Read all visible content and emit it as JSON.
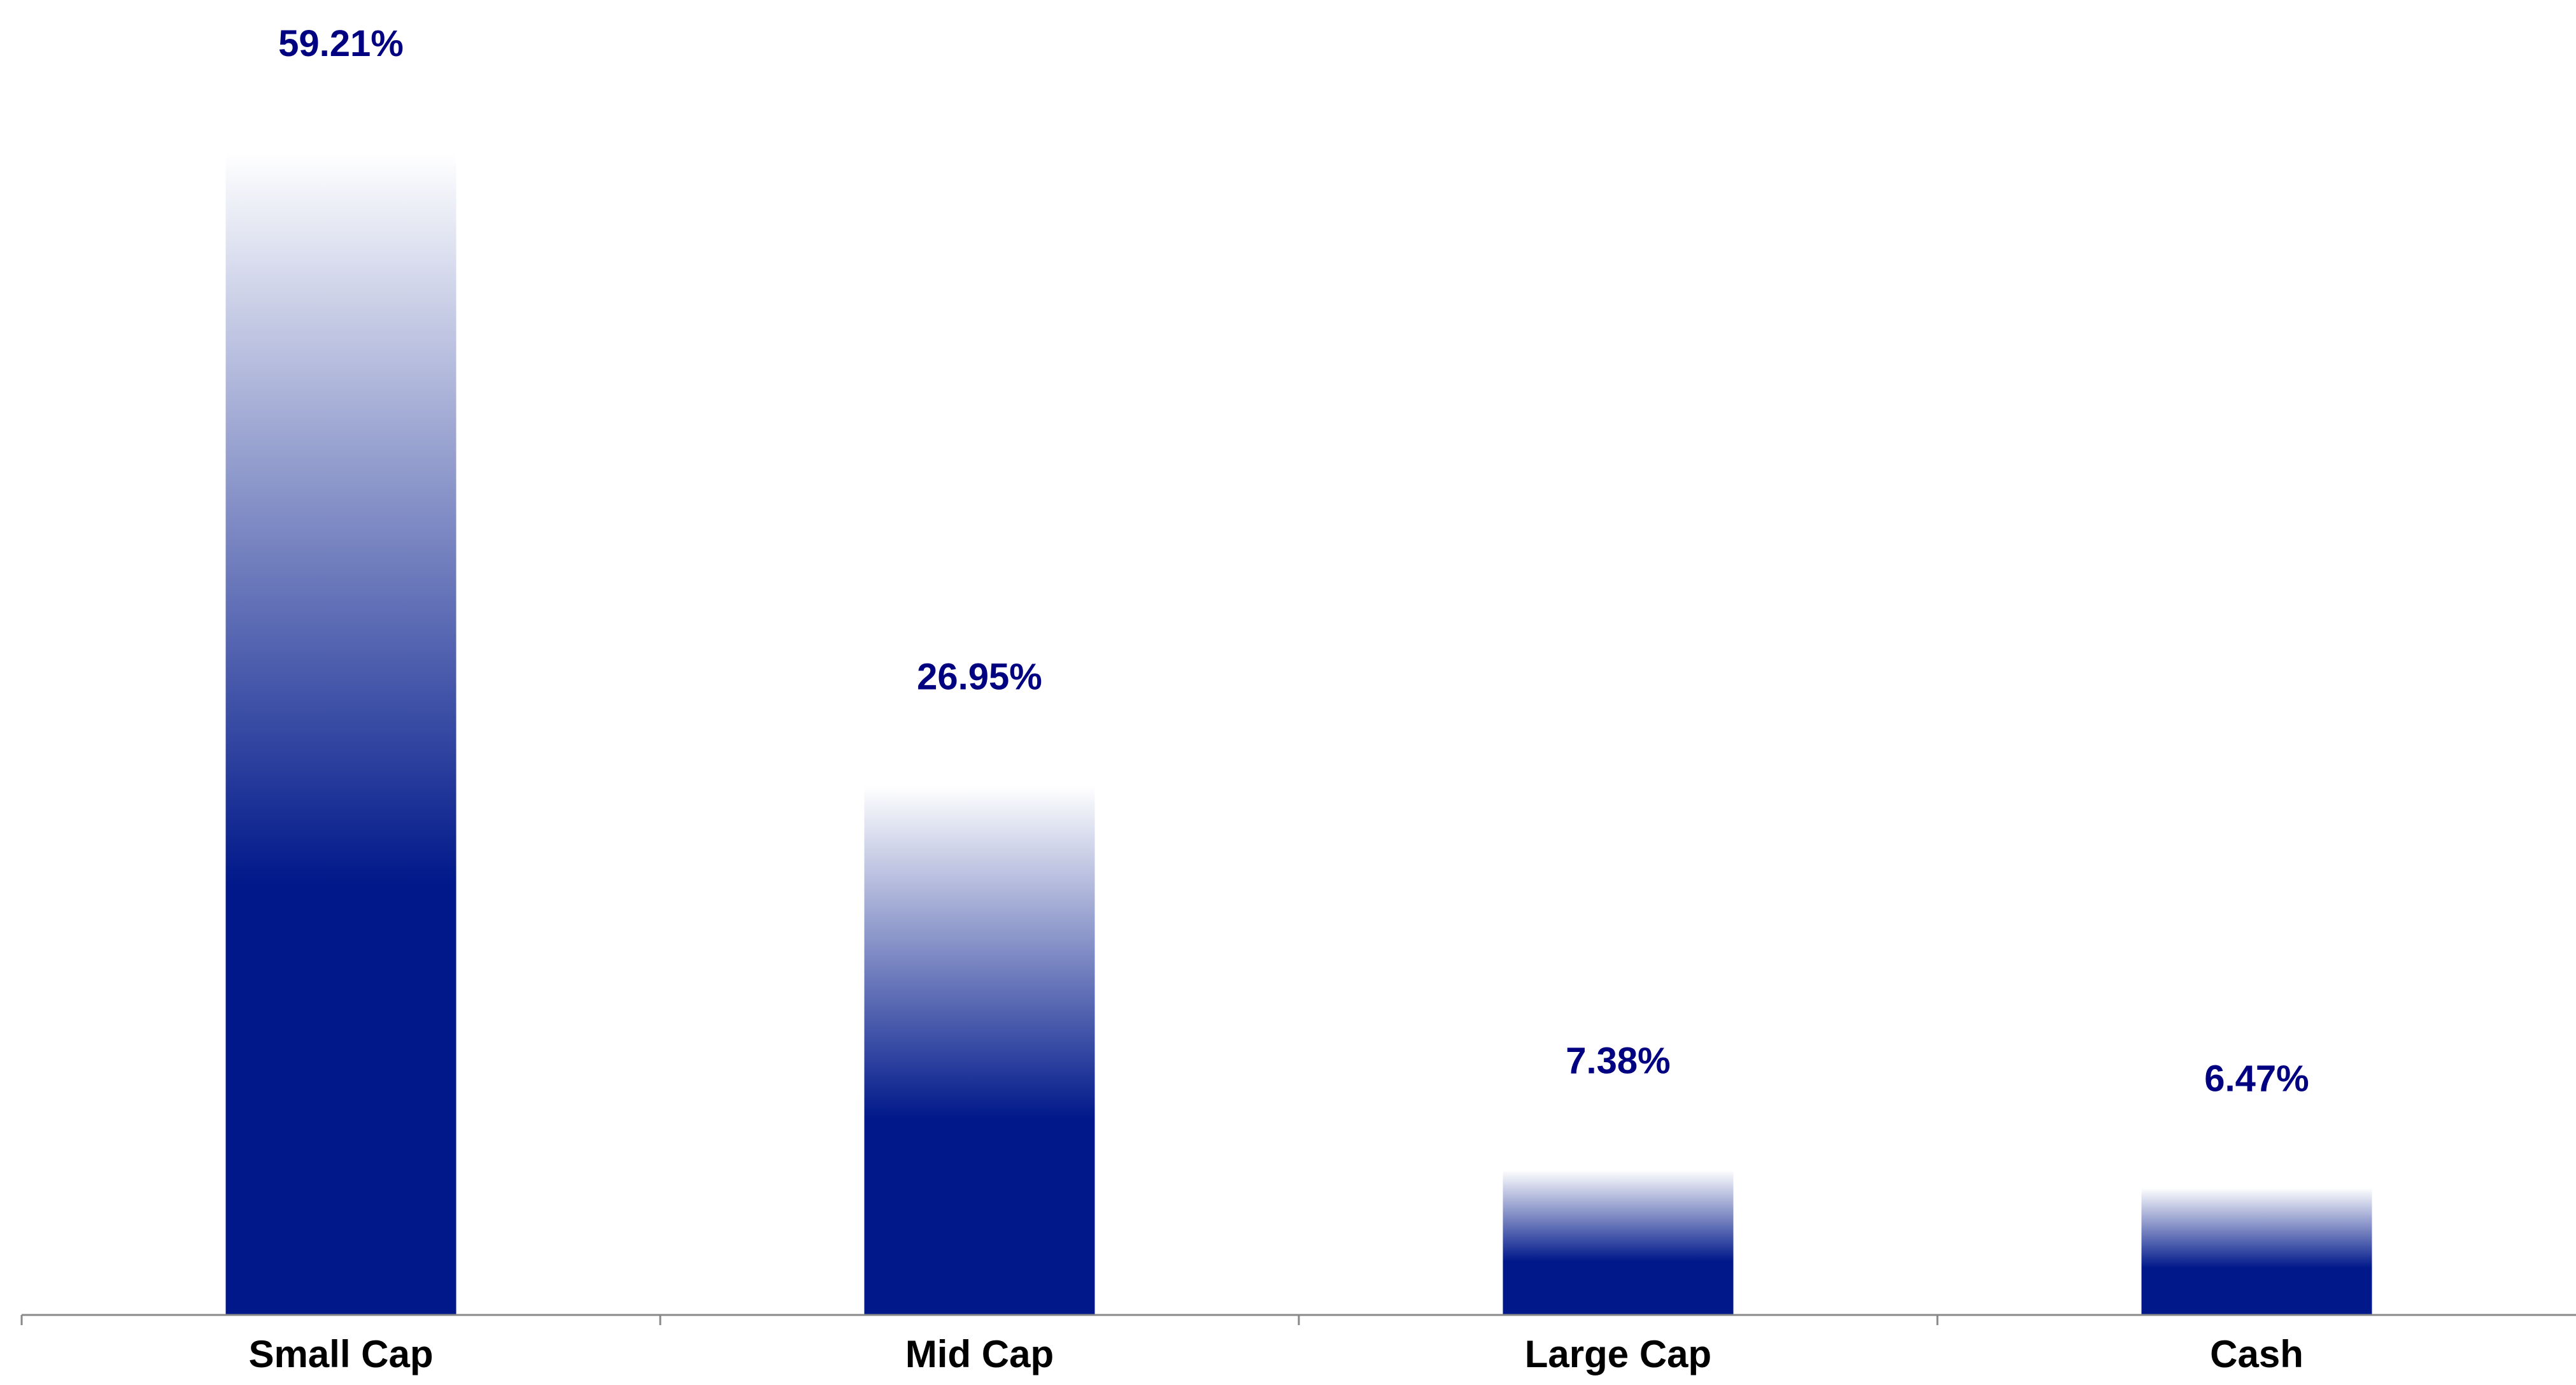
{
  "chart_data": {
    "type": "bar",
    "categories": [
      "Small Cap",
      "Mid Cap",
      "Large Cap",
      "Cash"
    ],
    "values": [
      59.21,
      26.95,
      7.38,
      6.47
    ],
    "data_labels": [
      "59.21%",
      "26.95%",
      "7.38%",
      "6.47%"
    ],
    "value_unit": "%",
    "title": "",
    "xlabel": "",
    "ylabel": "",
    "ylim": [
      0,
      60
    ],
    "grid": false,
    "legend": "none",
    "colors": {
      "bar": "#00188A",
      "bar_fade": "#FFFFFF",
      "label": "#000080",
      "axis": "#888888",
      "category_text": "#000000"
    }
  }
}
